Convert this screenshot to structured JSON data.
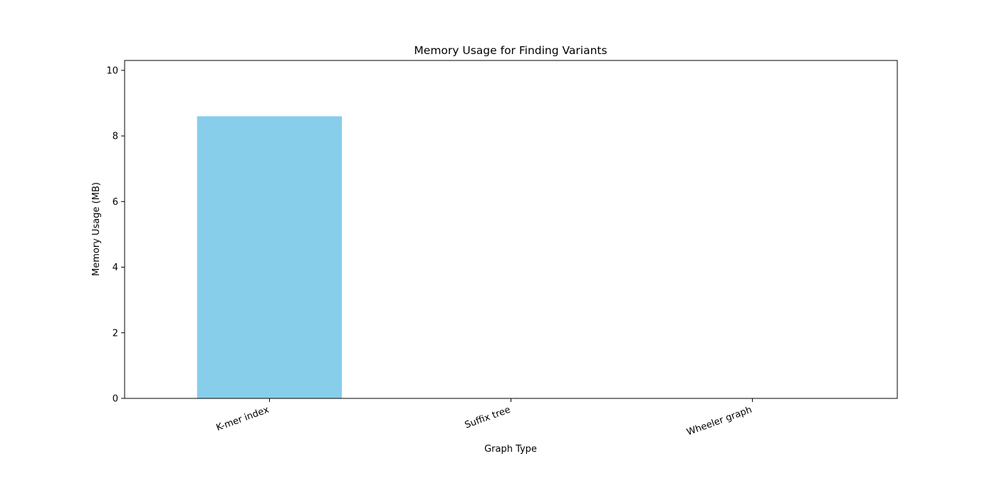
{
  "chart_data": {
    "type": "bar",
    "title": "Memory Usage for Finding Variants",
    "xlabel": "Graph Type",
    "ylabel": "Memory Usage (MB)",
    "categories": [
      "K-mer index",
      "Suffix tree",
      "Wheeler graph"
    ],
    "values": [
      8.6,
      0,
      0
    ],
    "ylim": [
      0,
      10.3
    ],
    "yticks": [
      0,
      2,
      4,
      6,
      8,
      10
    ],
    "bar_color": "#87ceeb",
    "grid": false,
    "xtick_rotation_deg": -20
  }
}
